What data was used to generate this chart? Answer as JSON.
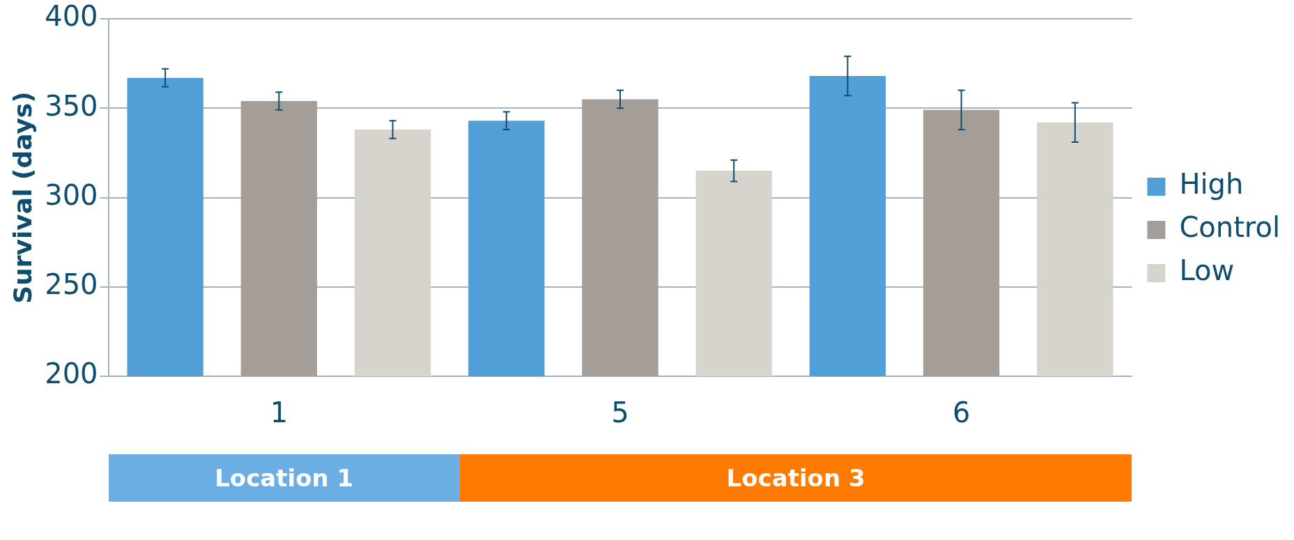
{
  "chart_data": {
    "type": "bar",
    "ylabel": "Survival (days)",
    "categories": [
      "1",
      "5",
      "6"
    ],
    "series": [
      {
        "name": "High",
        "color": "#519fd6",
        "values": [
          367,
          343,
          368
        ],
        "errors": [
          5,
          5,
          11
        ]
      },
      {
        "name": "Control",
        "color": "#a59d97",
        "values": [
          354,
          355,
          349
        ],
        "errors": [
          5,
          5,
          11
        ]
      },
      {
        "name": "Low",
        "color": "#d6d4cd",
        "values": [
          338,
          315,
          342
        ],
        "errors": [
          5,
          6,
          11
        ]
      }
    ],
    "ylim": [
      200,
      400
    ],
    "yticks": [
      200,
      250,
      300,
      350,
      400
    ],
    "grid": "y",
    "legend": "right",
    "annotations": [
      "Location 1",
      "Location 3"
    ]
  }
}
